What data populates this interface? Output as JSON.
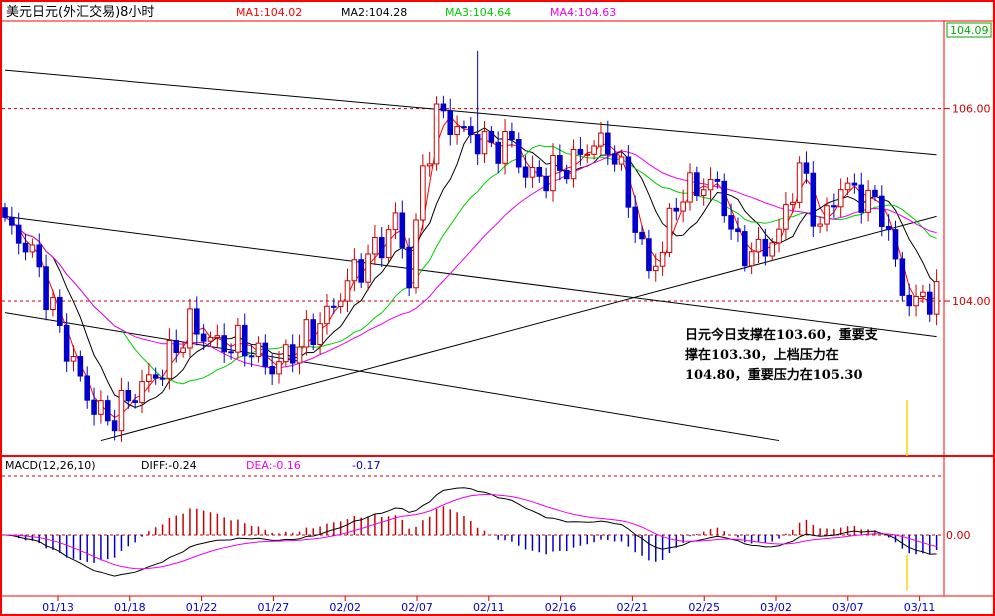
{
  "chart_data": [
    {
      "type": "candlestick",
      "title": "美元日元(外汇交易)8小时",
      "ylim": [
        102.4,
        106.9
      ],
      "y_ticks": [
        "106.00",
        "104.00"
      ],
      "last_price_label": "104.09",
      "last_price": 104.09,
      "legend": [
        {
          "label": "MA1:104.02",
          "color": "#ff0000"
        },
        {
          "label": "MA2:104.28",
          "color": "#000000"
        },
        {
          "label": "MA3:104.64",
          "color": "#00cc00"
        },
        {
          "label": "MA4:104.63",
          "color": "#ee00ee"
        }
      ],
      "x_ticks": [
        "01/13",
        "01/18",
        "01/22",
        "01/27",
        "02/02",
        "02/07",
        "02/11",
        "02/16",
        "02/21",
        "02/25",
        "03/02",
        "03/07",
        "03/11"
      ],
      "up_color": "#cc0000",
      "down_color": "#0000cc",
      "trendlines": [
        {
          "from": [
            0,
            106.4
          ],
          "to": [
            136,
            105.52
          ]
        },
        {
          "from": [
            0,
            104.88
          ],
          "to": [
            136,
            103.63
          ]
        },
        {
          "from": [
            0,
            103.88
          ],
          "to": [
            113,
            102.55
          ]
        },
        {
          "from": [
            14,
            102.55
          ],
          "to": [
            136,
            104.88
          ]
        }
      ],
      "annotation": {
        "lines": [
          "日元今日支撑在103.60，重要支",
          "撑在103.30，上档压力在",
          "104.80，重要压力在105.30"
        ],
        "color": "#000000"
      }
    },
    {
      "type": "macd",
      "title": "MACD(12,26,10)",
      "values_text": [
        {
          "label": "DIFF:-0.24",
          "color": "#000000"
        },
        {
          "label": "DEA:-0.16",
          "color": "#ee00ee"
        },
        {
          "label": "-0.17",
          "color": "#0000cc"
        }
      ],
      "zero_label": "0.00",
      "ylim": [
        -0.75,
        0.65
      ],
      "histogram_up_color": "#cc0000",
      "histogram_down_color": "#0000cc",
      "diff_color": "#000000",
      "dea_color": "#ee00ee"
    }
  ]
}
